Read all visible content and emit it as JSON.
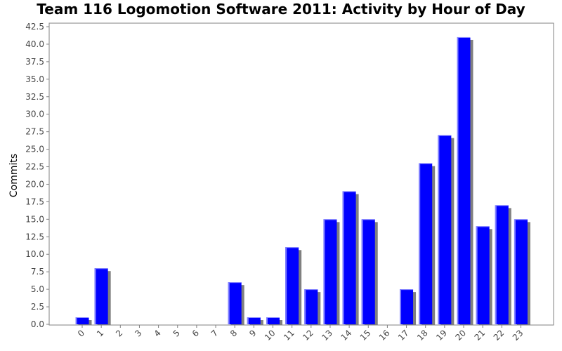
{
  "chart_data": {
    "type": "bar",
    "title": "Team 116 Logomotion Software 2011: Activity by Hour of Day",
    "xlabel": "",
    "ylabel": "Commits",
    "categories": [
      "0",
      "1",
      "2",
      "3",
      "4",
      "5",
      "6",
      "7",
      "8",
      "9",
      "10",
      "11",
      "12",
      "13",
      "14",
      "15",
      "16",
      "17",
      "18",
      "19",
      "20",
      "21",
      "22",
      "23"
    ],
    "values": [
      1,
      8,
      0,
      0,
      0,
      0,
      0,
      0,
      6,
      1,
      1,
      11,
      5,
      15,
      19,
      15,
      0,
      5,
      23,
      27,
      41,
      14,
      17,
      15
    ],
    "ylim": [
      0,
      42.5
    ],
    "yticks": [
      "0.0",
      "2.5",
      "5.0",
      "7.5",
      "10.0",
      "12.5",
      "15.0",
      "17.5",
      "20.0",
      "22.5",
      "25.0",
      "27.5",
      "30.0",
      "32.5",
      "35.0",
      "37.5",
      "40.0",
      "42.5"
    ],
    "grid": false,
    "colors": {
      "bar": "#0000ff",
      "bar_highlight": "#8080ff",
      "shadow": "#808080",
      "axis": "#808080"
    }
  }
}
